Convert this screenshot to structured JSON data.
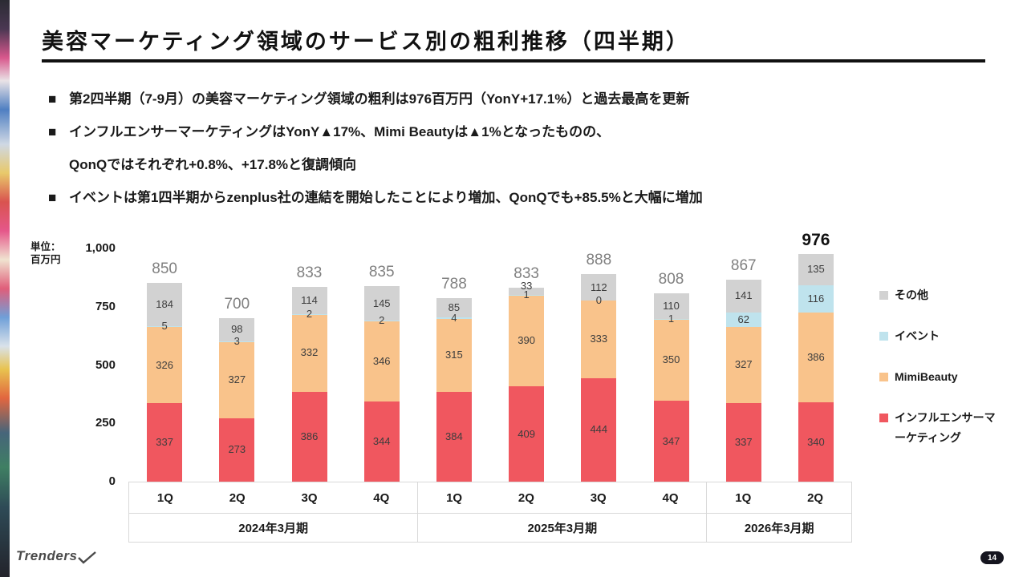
{
  "slide": {
    "title": "美容マーケティング領域のサービス別の粗利推移（四半期）",
    "bullets": [
      {
        "marker": "■",
        "text": "第2四半期（7-9月）の美容マーケティング領域の粗利は976百万円（YonY+17.1%）と過去最高を更新"
      },
      {
        "marker": "■",
        "text": "インフルエンサーマーケティングはYonY▲17%、Mimi Beautyは▲1%となったものの、"
      },
      {
        "marker": "",
        "text": "QonQではそれぞれ+0.8%、+17.8%と復調傾向"
      },
      {
        "marker": "■",
        "text": "イベントは第1四半期からzenplus社の連結を開始したことにより増加、QonQでも+85.5%と大幅に増加"
      }
    ],
    "unit_line1": "単位：",
    "unit_line2": "百万円",
    "footer": {
      "logo_text": "Trenders",
      "page_number": "14"
    }
  },
  "chart_data": {
    "type": "stacked-bar",
    "title": "美容マーケティング領域のサービス別の粗利推移（四半期）",
    "unit": "百万円",
    "categories": [
      "1Q",
      "2Q",
      "3Q",
      "4Q",
      "1Q",
      "2Q",
      "3Q",
      "4Q",
      "1Q",
      "2Q"
    ],
    "groups": [
      {
        "label": "2024年3月期",
        "span": 4
      },
      {
        "label": "2025年3月期",
        "span": 4
      },
      {
        "label": "2026年3月期",
        "span": 2
      }
    ],
    "series": [
      {
        "key": "influencer-marketing",
        "name": "インフルエンサーマーケティング",
        "color": "#f0575f",
        "values": [
          337,
          273,
          386,
          344,
          384,
          409,
          444,
          347,
          337,
          340
        ]
      },
      {
        "key": "mimibeauty",
        "name": "MimiBeauty",
        "color": "#f9c38b",
        "values": [
          326,
          327,
          332,
          346,
          315,
          390,
          333,
          350,
          327,
          386
        ]
      },
      {
        "key": "event",
        "name": "イベント",
        "color": "#bfe3ed",
        "values": [
          5,
          3,
          2,
          2,
          4,
          1,
          0,
          1,
          62,
          116
        ]
      },
      {
        "key": "other",
        "name": "その他",
        "color": "#d2d2d2",
        "values": [
          184,
          98,
          114,
          145,
          85,
          33,
          112,
          110,
          141,
          135
        ]
      }
    ],
    "totals": [
      850,
      700,
      833,
      835,
      788,
      833,
      888,
      808,
      867,
      976
    ],
    "emphasized_total_index": 9,
    "ylim": [
      0,
      1000
    ],
    "yticks": [
      {
        "value": 0,
        "label": "0"
      },
      {
        "value": 250,
        "label": "250"
      },
      {
        "value": 500,
        "label": "500"
      },
      {
        "value": 750,
        "label": "750"
      },
      {
        "value": 1000,
        "label": "1,000"
      }
    ],
    "legend_position": "right",
    "gridlines": false
  }
}
